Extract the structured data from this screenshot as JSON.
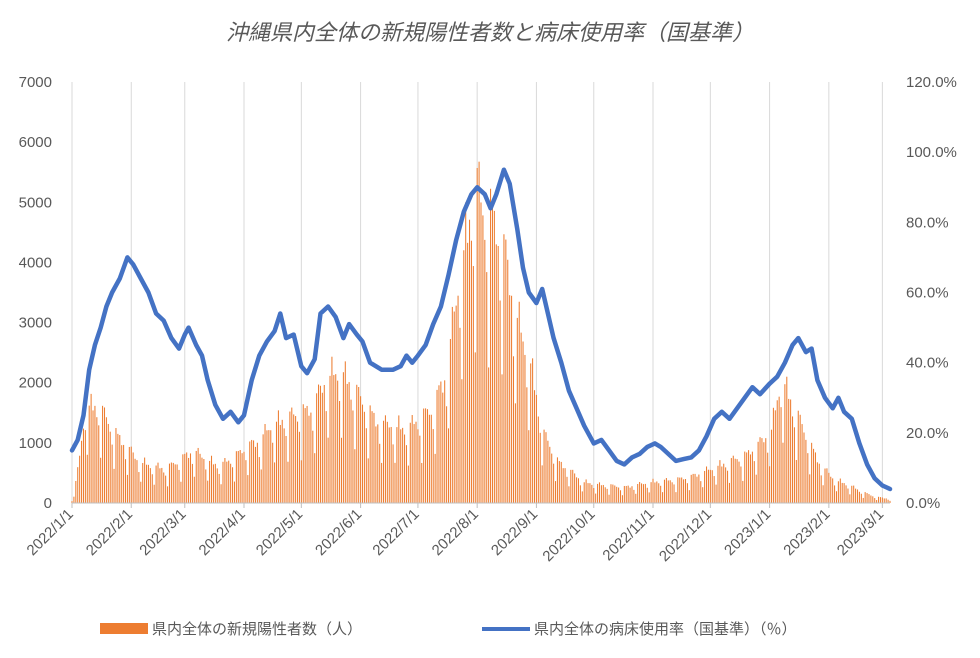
{
  "chart_data": {
    "type": "bar+line",
    "title": "沖縄県内全体の新規陽性者数と病床使用率（国基準）",
    "left_axis": {
      "ylim": [
        0,
        7000
      ],
      "ticks": [
        "0",
        "1000",
        "2000",
        "3000",
        "4000",
        "5000",
        "6000",
        "7000"
      ]
    },
    "right_axis": {
      "ylim": [
        0,
        120
      ],
      "ticks": [
        "0.0%",
        "20.0%",
        "40.0%",
        "60.0%",
        "80.0%",
        "100.0%",
        "120.0%"
      ]
    },
    "x_ticks": [
      "2022/1/1",
      "2022/2/1",
      "2022/3/1",
      "2022/4/1",
      "2022/5/1",
      "2022/6/1",
      "2022/7/1",
      "2022/8/1",
      "2022/9/1",
      "2022/10/1",
      "2022/11/1",
      "2022/12/1",
      "2023/1/1",
      "2023/2/1",
      "2023/3/1"
    ],
    "x_range": [
      "2022-01-01",
      "2023-03-05"
    ],
    "grid": "vertical",
    "legend_position": "bottom",
    "colors": {
      "bars": "#ed7d31",
      "line": "#4472c4",
      "grid": "#d9d9d9",
      "text": "#595959"
    },
    "series": [
      {
        "name": "県内全体の新規陽性者数（人）",
        "type": "bar",
        "axis": "left",
        "weekly_peaks": [
          [
            "2022-01-01",
            50
          ],
          [
            "2022-01-04",
            600
          ],
          [
            "2022-01-08",
            1800
          ],
          [
            "2022-01-15",
            1850
          ],
          [
            "2022-01-22",
            1400
          ],
          [
            "2022-01-29",
            1100
          ],
          [
            "2022-02-05",
            800
          ],
          [
            "2022-02-12",
            700
          ],
          [
            "2022-02-19",
            650
          ],
          [
            "2022-02-26",
            800
          ],
          [
            "2022-03-05",
            1000
          ],
          [
            "2022-03-12",
            850
          ],
          [
            "2022-03-19",
            700
          ],
          [
            "2022-03-26",
            850
          ],
          [
            "2022-04-02",
            1050
          ],
          [
            "2022-04-09",
            1200
          ],
          [
            "2022-04-16",
            1500
          ],
          [
            "2022-04-23",
            1600
          ],
          [
            "2022-04-30",
            1700
          ],
          [
            "2022-05-07",
            1800
          ],
          [
            "2022-05-14",
            2400
          ],
          [
            "2022-05-21",
            2500
          ],
          [
            "2022-05-28",
            2200
          ],
          [
            "2022-06-04",
            1800
          ],
          [
            "2022-06-11",
            1500
          ],
          [
            "2022-06-18",
            1500
          ],
          [
            "2022-06-25",
            1400
          ],
          [
            "2022-07-02",
            1600
          ],
          [
            "2022-07-09",
            1800
          ],
          [
            "2022-07-16",
            2500
          ],
          [
            "2022-07-23",
            4400
          ],
          [
            "2022-07-27",
            5200
          ],
          [
            "2022-08-01",
            6000
          ],
          [
            "2022-08-04",
            5500
          ],
          [
            "2022-08-08",
            5500
          ],
          [
            "2022-08-15",
            4800
          ],
          [
            "2022-08-22",
            3500
          ],
          [
            "2022-08-29",
            2600
          ],
          [
            "2022-09-05",
            1300
          ],
          [
            "2022-09-12",
            800
          ],
          [
            "2022-09-19",
            600
          ],
          [
            "2022-09-26",
            400
          ],
          [
            "2022-10-03",
            350
          ],
          [
            "2022-10-10",
            330
          ],
          [
            "2022-10-17",
            300
          ],
          [
            "2022-10-24",
            350
          ],
          [
            "2022-10-31",
            400
          ],
          [
            "2022-11-07",
            420
          ],
          [
            "2022-11-14",
            450
          ],
          [
            "2022-11-21",
            500
          ],
          [
            "2022-11-28",
            600
          ],
          [
            "2022-12-05",
            700
          ],
          [
            "2022-12-12",
            800
          ],
          [
            "2022-12-19",
            900
          ],
          [
            "2022-12-26",
            1100
          ],
          [
            "2023-01-02",
            1400
          ],
          [
            "2023-01-07",
            2350
          ],
          [
            "2023-01-14",
            1800
          ],
          [
            "2023-01-21",
            1200
          ],
          [
            "2023-01-28",
            700
          ],
          [
            "2023-02-04",
            450
          ],
          [
            "2023-02-11",
            350
          ],
          [
            "2023-02-18",
            220
          ],
          [
            "2023-02-25",
            120
          ],
          [
            "2023-03-05",
            80
          ]
        ]
      },
      {
        "name": "県内全体の病床使用率（国基準）（％）",
        "type": "line",
        "axis": "right",
        "points": [
          [
            "2022-01-01",
            15
          ],
          [
            "2022-01-04",
            18
          ],
          [
            "2022-01-07",
            25
          ],
          [
            "2022-01-10",
            38
          ],
          [
            "2022-01-13",
            45
          ],
          [
            "2022-01-16",
            50
          ],
          [
            "2022-01-19",
            56
          ],
          [
            "2022-01-22",
            60
          ],
          [
            "2022-01-26",
            64
          ],
          [
            "2022-01-30",
            70
          ],
          [
            "2022-02-02",
            68
          ],
          [
            "2022-02-06",
            64
          ],
          [
            "2022-02-10",
            60
          ],
          [
            "2022-02-14",
            54
          ],
          [
            "2022-02-18",
            52
          ],
          [
            "2022-02-22",
            47
          ],
          [
            "2022-02-26",
            44
          ],
          [
            "2022-03-01",
            48
          ],
          [
            "2022-03-03",
            50
          ],
          [
            "2022-03-07",
            45
          ],
          [
            "2022-03-10",
            42
          ],
          [
            "2022-03-13",
            35
          ],
          [
            "2022-03-17",
            28
          ],
          [
            "2022-03-21",
            24
          ],
          [
            "2022-03-25",
            26
          ],
          [
            "2022-03-29",
            23
          ],
          [
            "2022-04-01",
            25
          ],
          [
            "2022-04-05",
            35
          ],
          [
            "2022-04-09",
            42
          ],
          [
            "2022-04-13",
            46
          ],
          [
            "2022-04-17",
            49
          ],
          [
            "2022-04-20",
            54
          ],
          [
            "2022-04-23",
            47
          ],
          [
            "2022-04-27",
            48
          ],
          [
            "2022-05-01",
            39
          ],
          [
            "2022-05-04",
            37
          ],
          [
            "2022-05-08",
            41
          ],
          [
            "2022-05-11",
            54
          ],
          [
            "2022-05-15",
            56
          ],
          [
            "2022-05-19",
            53
          ],
          [
            "2022-05-23",
            47
          ],
          [
            "2022-05-26",
            51
          ],
          [
            "2022-05-30",
            48
          ],
          [
            "2022-06-02",
            46
          ],
          [
            "2022-06-06",
            40
          ],
          [
            "2022-06-12",
            38
          ],
          [
            "2022-06-18",
            38
          ],
          [
            "2022-06-22",
            39
          ],
          [
            "2022-06-25",
            42
          ],
          [
            "2022-06-28",
            40
          ],
          [
            "2022-07-01",
            42
          ],
          [
            "2022-07-05",
            45
          ],
          [
            "2022-07-09",
            51
          ],
          [
            "2022-07-13",
            56
          ],
          [
            "2022-07-17",
            65
          ],
          [
            "2022-07-21",
            75
          ],
          [
            "2022-07-25",
            83
          ],
          [
            "2022-07-29",
            88
          ],
          [
            "2022-08-01",
            90
          ],
          [
            "2022-08-05",
            88
          ],
          [
            "2022-08-08",
            84
          ],
          [
            "2022-08-11",
            88
          ],
          [
            "2022-08-15",
            95
          ],
          [
            "2022-08-18",
            91
          ],
          [
            "2022-08-22",
            78
          ],
          [
            "2022-08-25",
            67
          ],
          [
            "2022-08-28",
            60
          ],
          [
            "2022-09-01",
            57
          ],
          [
            "2022-09-04",
            61
          ],
          [
            "2022-09-07",
            54
          ],
          [
            "2022-09-10",
            47
          ],
          [
            "2022-09-14",
            40
          ],
          [
            "2022-09-18",
            32
          ],
          [
            "2022-09-22",
            27
          ],
          [
            "2022-09-26",
            22
          ],
          [
            "2022-10-01",
            17
          ],
          [
            "2022-10-05",
            18
          ],
          [
            "2022-10-09",
            15
          ],
          [
            "2022-10-13",
            12
          ],
          [
            "2022-10-17",
            11
          ],
          [
            "2022-10-21",
            13
          ],
          [
            "2022-10-25",
            14
          ],
          [
            "2022-10-29",
            16
          ],
          [
            "2022-11-02",
            17
          ],
          [
            "2022-11-05",
            16
          ],
          [
            "2022-11-09",
            14
          ],
          [
            "2022-11-13",
            12
          ],
          [
            "2022-11-17",
            12.5
          ],
          [
            "2022-11-21",
            13
          ],
          [
            "2022-11-25",
            15
          ],
          [
            "2022-11-29",
            19
          ],
          [
            "2022-12-03",
            24
          ],
          [
            "2022-12-07",
            26
          ],
          [
            "2022-12-11",
            24
          ],
          [
            "2022-12-15",
            27
          ],
          [
            "2022-12-19",
            30
          ],
          [
            "2022-12-23",
            33
          ],
          [
            "2022-12-27",
            31
          ],
          [
            "2023-01-01",
            34
          ],
          [
            "2023-01-05",
            36
          ],
          [
            "2023-01-09",
            40
          ],
          [
            "2023-01-13",
            45
          ],
          [
            "2023-01-16",
            47
          ],
          [
            "2023-01-20",
            43
          ],
          [
            "2023-01-23",
            44
          ],
          [
            "2023-01-26",
            35
          ],
          [
            "2023-01-30",
            30
          ],
          [
            "2023-02-03",
            27
          ],
          [
            "2023-02-06",
            30
          ],
          [
            "2023-02-09",
            26
          ],
          [
            "2023-02-13",
            24
          ],
          [
            "2023-02-17",
            17
          ],
          [
            "2023-02-21",
            11
          ],
          [
            "2023-02-25",
            7
          ],
          [
            "2023-03-01",
            5
          ],
          [
            "2023-03-05",
            4
          ]
        ]
      }
    ]
  }
}
